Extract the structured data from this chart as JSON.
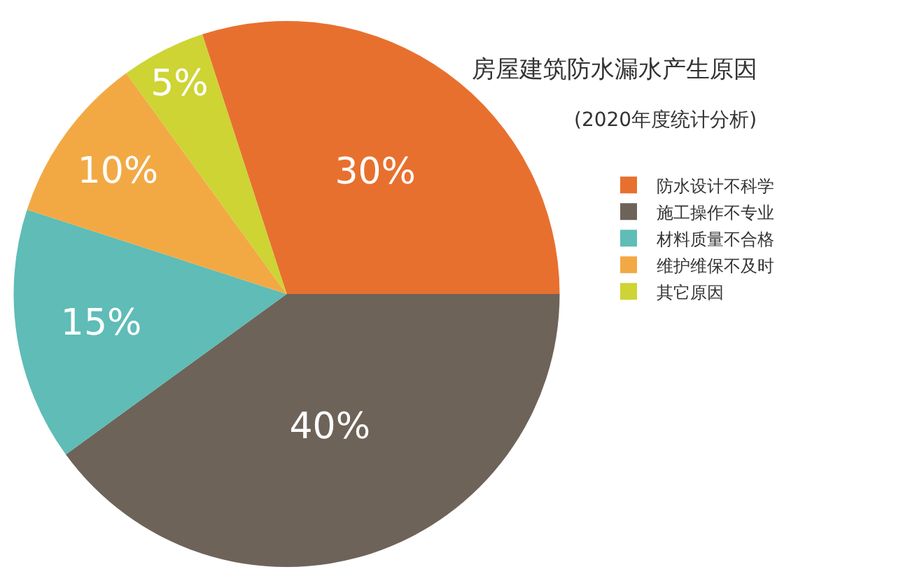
{
  "chart_data": {
    "type": "pie",
    "title": "房屋建筑防水漏水产生原因",
    "subtitle": "(2020年度统计分析)",
    "categories": [
      "防水设计不科学",
      "施工操作不专业",
      "材料质量不合格",
      "维护维保不及时",
      "其它原因"
    ],
    "values": [
      30,
      40,
      15,
      10,
      5
    ],
    "colors": [
      "#e8702f",
      "#6e6359",
      "#5fbcb6",
      "#f2a944",
      "#cdd434"
    ],
    "value_labels": [
      "30%",
      "40%",
      "15%",
      "10%",
      "5%"
    ],
    "legend": "right"
  }
}
